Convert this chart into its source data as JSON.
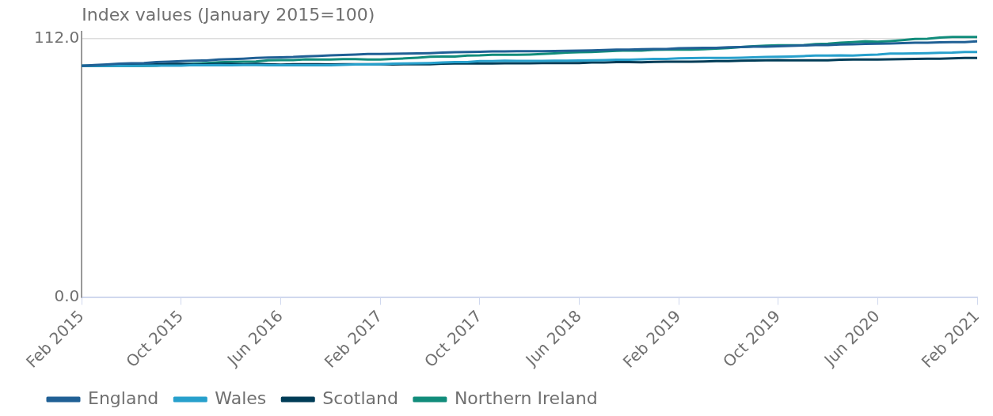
{
  "chart_data": {
    "type": "line",
    "ylabel": "Index values (January 2015=100)",
    "x": [
      "2015-02",
      "2015-03",
      "2015-04",
      "2015-05",
      "2015-06",
      "2015-07",
      "2015-08",
      "2015-09",
      "2015-10",
      "2015-11",
      "2015-12",
      "2016-01",
      "2016-02",
      "2016-03",
      "2016-04",
      "2016-05",
      "2016-06",
      "2016-07",
      "2016-08",
      "2016-09",
      "2016-10",
      "2016-11",
      "2016-12",
      "2017-01",
      "2017-02",
      "2017-03",
      "2017-04",
      "2017-05",
      "2017-06",
      "2017-07",
      "2017-08",
      "2017-09",
      "2017-10",
      "2017-11",
      "2017-12",
      "2018-01",
      "2018-02",
      "2018-03",
      "2018-04",
      "2018-05",
      "2018-06",
      "2018-07",
      "2018-08",
      "2018-09",
      "2018-10",
      "2018-11",
      "2018-12",
      "2019-01",
      "2019-02",
      "2019-03",
      "2019-04",
      "2019-05",
      "2019-06",
      "2019-07",
      "2019-08",
      "2019-09",
      "2019-10",
      "2019-11",
      "2019-12",
      "2020-01",
      "2020-02",
      "2020-03",
      "2020-04",
      "2020-05",
      "2020-06",
      "2020-07",
      "2020-08",
      "2020-09",
      "2020-10",
      "2020-11",
      "2020-12",
      "2021-01",
      "2021-02"
    ],
    "series": [
      {
        "name": "England",
        "color": "#206095",
        "values": [
          100.2,
          100.5,
          100.8,
          101.1,
          101.3,
          101.4,
          101.8,
          102.0,
          102.2,
          102.4,
          102.5,
          102.9,
          103.1,
          103.3,
          103.6,
          103.8,
          103.9,
          104.0,
          104.3,
          104.5,
          104.7,
          104.9,
          105.1,
          105.3,
          105.3,
          105.4,
          105.5,
          105.6,
          105.7,
          105.9,
          106.1,
          106.2,
          106.3,
          106.4,
          106.4,
          106.5,
          106.5,
          106.5,
          106.6,
          106.7,
          106.8,
          106.9,
          107.0,
          107.2,
          107.2,
          107.4,
          107.5,
          107.5,
          107.8,
          107.9,
          108.0,
          108.0,
          108.2,
          108.3,
          108.5,
          108.5,
          108.7,
          108.8,
          109.0,
          109.2,
          109.2,
          109.4,
          109.5,
          109.7,
          109.8,
          109.9,
          110.0,
          110.2,
          110.2,
          110.4,
          110.5,
          110.5,
          110.8
        ]
      },
      {
        "name": "Wales",
        "color": "#27a0cc",
        "values": [
          100.2,
          100.2,
          100.2,
          100.2,
          100.2,
          100.3,
          100.3,
          100.3,
          100.3,
          100.5,
          100.4,
          100.5,
          100.4,
          100.5,
          100.5,
          100.4,
          100.4,
          100.4,
          100.4,
          100.4,
          100.4,
          100.6,
          100.8,
          100.8,
          100.9,
          101.1,
          101.2,
          101.3,
          101.4,
          101.6,
          101.8,
          101.8,
          102.2,
          102.2,
          102.4,
          102.3,
          102.3,
          102.3,
          102.4,
          102.4,
          102.5,
          102.6,
          102.7,
          102.8,
          102.8,
          103.0,
          103.2,
          103.2,
          103.4,
          103.5,
          103.6,
          103.6,
          103.6,
          103.7,
          103.9,
          104.0,
          104.1,
          104.2,
          104.4,
          104.6,
          104.6,
          104.7,
          104.6,
          104.9,
          105.1,
          105.5,
          105.5,
          105.6,
          105.7,
          105.8,
          105.9,
          106.2,
          106.2
        ]
      },
      {
        "name": "Scotland",
        "color": "#003c57",
        "values": [
          100.2,
          100.2,
          100.3,
          100.4,
          100.7,
          100.7,
          100.8,
          101.0,
          101.0,
          100.8,
          100.8,
          101.0,
          101.0,
          100.9,
          101.0,
          100.9,
          100.7,
          100.9,
          100.9,
          100.9,
          100.8,
          100.9,
          100.9,
          100.9,
          100.9,
          100.8,
          100.9,
          100.9,
          100.9,
          101.1,
          101.2,
          101.2,
          101.2,
          101.2,
          101.3,
          101.3,
          101.3,
          101.4,
          101.4,
          101.4,
          101.4,
          101.6,
          101.6,
          101.8,
          101.8,
          101.7,
          101.9,
          102.0,
          102.0,
          102.0,
          102.1,
          102.2,
          102.2,
          102.4,
          102.5,
          102.6,
          102.7,
          102.6,
          102.6,
          102.6,
          102.6,
          102.8,
          102.9,
          102.9,
          102.9,
          103.0,
          103.1,
          103.2,
          103.3,
          103.3,
          103.4,
          103.6,
          103.6
        ]
      },
      {
        "name": "Northern Ireland",
        "color": "#118c7b",
        "values": [
          100.2,
          100.2,
          100.2,
          100.2,
          100.2,
          100.2,
          100.3,
          100.7,
          100.8,
          101.1,
          101.4,
          101.7,
          101.9,
          102.0,
          102.1,
          102.6,
          102.7,
          102.7,
          103.0,
          102.9,
          102.9,
          103.1,
          103.1,
          102.9,
          102.9,
          103.2,
          103.4,
          103.7,
          104.1,
          104.2,
          104.2,
          104.6,
          104.7,
          105.0,
          105.0,
          105.0,
          105.1,
          105.3,
          105.6,
          105.9,
          106.1,
          106.2,
          106.4,
          106.7,
          106.9,
          106.8,
          107.1,
          107.2,
          107.2,
          107.2,
          107.4,
          107.6,
          107.9,
          108.3,
          108.7,
          108.9,
          109.1,
          109.1,
          109.1,
          109.6,
          109.8,
          110.2,
          110.5,
          110.8,
          110.6,
          110.9,
          111.3,
          111.8,
          111.9,
          112.4,
          112.7,
          112.7,
          112.7
        ]
      }
    ],
    "xlim": [
      "2015-02",
      "2021-02"
    ],
    "xticks": [
      {
        "value": "2015-02",
        "label": "Feb 2015"
      },
      {
        "value": "2015-10",
        "label": "Oct 2015"
      },
      {
        "value": "2016-06",
        "label": "Jun 2016"
      },
      {
        "value": "2017-02",
        "label": "Feb 2017"
      },
      {
        "value": "2017-10",
        "label": "Oct 2017"
      },
      {
        "value": "2018-06",
        "label": "Jun 2018"
      },
      {
        "value": "2019-02",
        "label": "Feb 2019"
      },
      {
        "value": "2019-10",
        "label": "Oct 2019"
      },
      {
        "value": "2020-06",
        "label": "Jun 2020"
      },
      {
        "value": "2021-02",
        "label": "Feb 2021"
      }
    ],
    "ylim": [
      0,
      115
    ],
    "yticks": [
      {
        "value": 0,
        "label": "0.0"
      },
      {
        "value": 112,
        "label": "112.0"
      }
    ],
    "grid": "y",
    "legend": "bottom",
    "marker": "none",
    "line_style": "solid"
  }
}
